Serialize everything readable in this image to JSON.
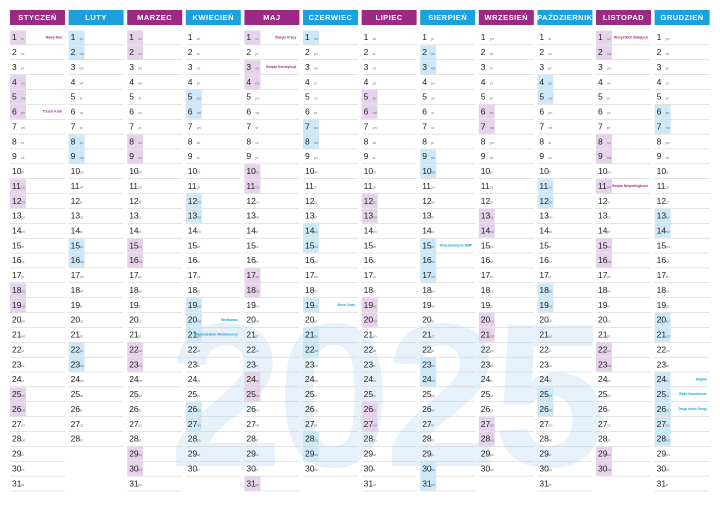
{
  "watermark": "2025",
  "months": [
    {
      "name": "STYCZEŃ",
      "color": "#9c2a85",
      "tint": "#e6d3eb",
      "days": [
        1,
        2,
        3,
        4,
        5,
        6,
        7,
        8,
        9,
        10,
        11,
        12,
        13,
        14,
        15,
        16,
        17,
        18,
        19,
        20,
        21,
        22,
        23,
        24,
        25,
        26,
        27,
        28,
        29,
        30,
        31
      ],
      "weekdays": [
        "śr",
        "cz",
        "pt",
        "so",
        "nd",
        "pn",
        "wt",
        "śr",
        "cz",
        "pt",
        "so",
        "nd",
        "pn",
        "wt",
        "śr",
        "cz",
        "pt",
        "so",
        "nd",
        "pn",
        "wt",
        "śr",
        "cz",
        "pt",
        "so",
        "nd",
        "pn",
        "wt",
        "śr",
        "cz",
        "pt"
      ],
      "notes": {
        "0": "Nowy Rok",
        "5": "Trzech Króli"
      }
    },
    {
      "name": "LUTY",
      "color": "#1ba1dd",
      "tint": "#cde8f6",
      "days": [
        1,
        2,
        3,
        4,
        5,
        6,
        7,
        8,
        9,
        10,
        11,
        12,
        13,
        14,
        15,
        16,
        17,
        18,
        19,
        20,
        21,
        22,
        23,
        24,
        25,
        26,
        27,
        28
      ],
      "weekdays": [
        "so",
        "nd",
        "pn",
        "wt",
        "śr",
        "cz",
        "pt",
        "so",
        "nd",
        "pn",
        "wt",
        "śr",
        "cz",
        "pt",
        "so",
        "nd",
        "pn",
        "wt",
        "śr",
        "cz",
        "pt",
        "so",
        "nd",
        "pn",
        "wt",
        "śr",
        "cz",
        "pt"
      ],
      "notes": {}
    },
    {
      "name": "MARZEC",
      "color": "#9c2a85",
      "tint": "#e6d3eb",
      "days": [
        1,
        2,
        3,
        4,
        5,
        6,
        7,
        8,
        9,
        10,
        11,
        12,
        13,
        14,
        15,
        16,
        17,
        18,
        19,
        20,
        21,
        22,
        23,
        24,
        25,
        26,
        27,
        28,
        29,
        30,
        31
      ],
      "weekdays": [
        "so",
        "nd",
        "pn",
        "wt",
        "śr",
        "cz",
        "pt",
        "so",
        "nd",
        "pn",
        "wt",
        "śr",
        "cz",
        "pt",
        "so",
        "nd",
        "pn",
        "wt",
        "śr",
        "cz",
        "pt",
        "so",
        "nd",
        "pn",
        "wt",
        "śr",
        "cz",
        "pt",
        "so",
        "nd",
        "pn"
      ],
      "notes": {}
    },
    {
      "name": "KWIECIEŃ",
      "color": "#1ba1dd",
      "tint": "#cde8f6",
      "days": [
        1,
        2,
        3,
        4,
        5,
        6,
        7,
        8,
        9,
        10,
        11,
        12,
        13,
        14,
        15,
        16,
        17,
        18,
        19,
        20,
        21,
        22,
        23,
        24,
        25,
        26,
        27,
        28,
        29,
        30
      ],
      "weekdays": [
        "wt",
        "śr",
        "cz",
        "pt",
        "so",
        "nd",
        "pn",
        "wt",
        "śr",
        "cz",
        "pt",
        "so",
        "nd",
        "pn",
        "wt",
        "śr",
        "cz",
        "pt",
        "so",
        "nd",
        "pn",
        "wt",
        "śr",
        "cz",
        "pt",
        "so",
        "nd",
        "pn",
        "wt",
        "śr"
      ],
      "notes": {
        "19": "Wielkanoc",
        "20": "Poniedziałek Wielkanocny"
      }
    },
    {
      "name": "MAJ",
      "color": "#9c2a85",
      "tint": "#e6d3eb",
      "days": [
        1,
        2,
        3,
        4,
        5,
        6,
        7,
        8,
        9,
        10,
        11,
        12,
        13,
        14,
        15,
        16,
        17,
        18,
        19,
        20,
        21,
        22,
        23,
        24,
        25,
        26,
        27,
        28,
        29,
        30,
        31
      ],
      "weekdays": [
        "cz",
        "pt",
        "so",
        "nd",
        "pn",
        "wt",
        "śr",
        "cz",
        "pt",
        "so",
        "nd",
        "pn",
        "wt",
        "śr",
        "cz",
        "pt",
        "so",
        "nd",
        "pn",
        "wt",
        "śr",
        "cz",
        "pt",
        "so",
        "nd",
        "pn",
        "wt",
        "śr",
        "cz",
        "pt",
        "so"
      ],
      "notes": {
        "0": "Święto Pracy",
        "2": "Święto Konstytucji"
      }
    },
    {
      "name": "CZERWIEC",
      "color": "#1ba1dd",
      "tint": "#cde8f6",
      "days": [
        1,
        2,
        3,
        4,
        5,
        6,
        7,
        8,
        9,
        10,
        11,
        12,
        13,
        14,
        15,
        16,
        17,
        18,
        19,
        20,
        21,
        22,
        23,
        24,
        25,
        26,
        27,
        28,
        29,
        30
      ],
      "weekdays": [
        "nd",
        "pn",
        "wt",
        "śr",
        "cz",
        "pt",
        "so",
        "nd",
        "pn",
        "wt",
        "śr",
        "cz",
        "pt",
        "so",
        "nd",
        "pn",
        "wt",
        "śr",
        "cz",
        "pt",
        "so",
        "nd",
        "pn",
        "wt",
        "śr",
        "cz",
        "pt",
        "so",
        "nd",
        "pn"
      ],
      "notes": {
        "18": "Boże Ciało"
      }
    },
    {
      "name": "LIPIEC",
      "color": "#9c2a85",
      "tint": "#e6d3eb",
      "days": [
        1,
        2,
        3,
        4,
        5,
        6,
        7,
        8,
        9,
        10,
        11,
        12,
        13,
        14,
        15,
        16,
        17,
        18,
        19,
        20,
        21,
        22,
        23,
        24,
        25,
        26,
        27,
        28,
        29,
        30,
        31
      ],
      "weekdays": [
        "wt",
        "śr",
        "cz",
        "pt",
        "so",
        "nd",
        "pn",
        "wt",
        "śr",
        "cz",
        "pt",
        "so",
        "nd",
        "pn",
        "wt",
        "śr",
        "cz",
        "pt",
        "so",
        "nd",
        "pn",
        "wt",
        "śr",
        "cz",
        "pt",
        "so",
        "nd",
        "pn",
        "wt",
        "śr",
        "cz"
      ],
      "notes": {}
    },
    {
      "name": "SIERPIEŃ",
      "color": "#1ba1dd",
      "tint": "#cde8f6",
      "days": [
        1,
        2,
        3,
        4,
        5,
        6,
        7,
        8,
        9,
        10,
        11,
        12,
        13,
        14,
        15,
        16,
        17,
        18,
        19,
        20,
        21,
        22,
        23,
        24,
        25,
        26,
        27,
        28,
        29,
        30,
        31
      ],
      "weekdays": [
        "pt",
        "so",
        "nd",
        "pn",
        "wt",
        "śr",
        "cz",
        "pt",
        "so",
        "nd",
        "pn",
        "wt",
        "śr",
        "cz",
        "pt",
        "so",
        "nd",
        "pn",
        "wt",
        "śr",
        "cz",
        "pt",
        "so",
        "nd",
        "pn",
        "wt",
        "śr",
        "cz",
        "pt",
        "so",
        "nd"
      ],
      "notes": {
        "14": "Wniebowzięcie NMP"
      }
    },
    {
      "name": "WRZESIEŃ",
      "color": "#9c2a85",
      "tint": "#e6d3eb",
      "days": [
        1,
        2,
        3,
        4,
        5,
        6,
        7,
        8,
        9,
        10,
        11,
        12,
        13,
        14,
        15,
        16,
        17,
        18,
        19,
        20,
        21,
        22,
        23,
        24,
        25,
        26,
        27,
        28,
        29,
        30
      ],
      "weekdays": [
        "pn",
        "wt",
        "śr",
        "cz",
        "pt",
        "so",
        "nd",
        "pn",
        "wt",
        "śr",
        "cz",
        "pt",
        "so",
        "nd",
        "pn",
        "wt",
        "śr",
        "cz",
        "pt",
        "so",
        "nd",
        "pn",
        "wt",
        "śr",
        "cz",
        "pt",
        "so",
        "nd",
        "pn",
        "wt"
      ],
      "notes": {}
    },
    {
      "name": "PAŹDZIERNIK",
      "color": "#1ba1dd",
      "tint": "#cde8f6",
      "days": [
        1,
        2,
        3,
        4,
        5,
        6,
        7,
        8,
        9,
        10,
        11,
        12,
        13,
        14,
        15,
        16,
        17,
        18,
        19,
        20,
        21,
        22,
        23,
        24,
        25,
        26,
        27,
        28,
        29,
        30,
        31
      ],
      "weekdays": [
        "śr",
        "cz",
        "pt",
        "so",
        "nd",
        "pn",
        "wt",
        "śr",
        "cz",
        "pt",
        "so",
        "nd",
        "pn",
        "wt",
        "śr",
        "cz",
        "pt",
        "so",
        "nd",
        "pn",
        "wt",
        "śr",
        "cz",
        "pt",
        "so",
        "nd",
        "pn",
        "wt",
        "śr",
        "cz",
        "pt"
      ],
      "notes": {}
    },
    {
      "name": "LISTOPAD",
      "color": "#9c2a85",
      "tint": "#e6d3eb",
      "days": [
        1,
        2,
        3,
        4,
        5,
        6,
        7,
        8,
        9,
        10,
        11,
        12,
        13,
        14,
        15,
        16,
        17,
        18,
        19,
        20,
        21,
        22,
        23,
        24,
        25,
        26,
        27,
        28,
        29,
        30
      ],
      "weekdays": [
        "so",
        "nd",
        "pn",
        "wt",
        "śr",
        "cz",
        "pt",
        "so",
        "nd",
        "pn",
        "wt",
        "śr",
        "cz",
        "pt",
        "so",
        "nd",
        "pn",
        "wt",
        "śr",
        "cz",
        "pt",
        "so",
        "nd",
        "pn",
        "wt",
        "śr",
        "cz",
        "pt",
        "so",
        "nd"
      ],
      "notes": {
        "0": "Wszystkich Świętych",
        "10": "Święto Niepodległości"
      }
    },
    {
      "name": "GRUDZIEŃ",
      "color": "#1ba1dd",
      "tint": "#cde8f6",
      "days": [
        1,
        2,
        3,
        4,
        5,
        6,
        7,
        8,
        9,
        10,
        11,
        12,
        13,
        14,
        15,
        16,
        17,
        18,
        19,
        20,
        21,
        22,
        23,
        24,
        25,
        26,
        27,
        28,
        29,
        30,
        31
      ],
      "weekdays": [
        "pn",
        "wt",
        "śr",
        "cz",
        "pt",
        "so",
        "nd",
        "pn",
        "wt",
        "śr",
        "cz",
        "pt",
        "so",
        "nd",
        "pn",
        "wt",
        "śr",
        "cz",
        "pt",
        "so",
        "nd",
        "pn",
        "wt",
        "śr",
        "cz",
        "pt",
        "so",
        "nd",
        "pn",
        "wt",
        "śr"
      ],
      "notes": {
        "23": "Wigilia",
        "24": "Boże Narodzenie",
        "25": "Drugi dzień Świąt"
      }
    }
  ]
}
